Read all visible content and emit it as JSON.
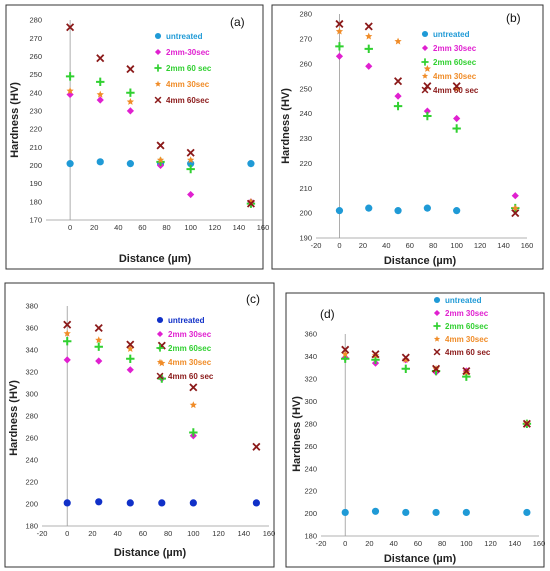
{
  "colors": {
    "untreated": "#1f9ad6",
    "untreated_c": "#1030c8",
    "pink": "#e020d0",
    "green": "#30d030",
    "orange": "#f08c28",
    "darkred": "#8b1a1a"
  },
  "chart_data": [
    {
      "type": "scatter",
      "panel_label": "(a)",
      "xlabel": "Distance (µm)",
      "ylabel": "Hardness (HV)",
      "xlim": [
        -20,
        160
      ],
      "ylim": [
        170,
        280
      ],
      "xticks": [
        0,
        20,
        40,
        60,
        80,
        100,
        120,
        140,
        160
      ],
      "yticks": [
        170,
        180,
        190,
        200,
        210,
        220,
        230,
        240,
        250,
        260,
        270,
        280
      ],
      "legend_position": "top-right",
      "series": [
        {
          "name": "untreated",
          "marker": "circle",
          "color_key": "untreated",
          "x": [
            0,
            25,
            50,
            75,
            100,
            150
          ],
          "y": [
            201,
            202,
            201,
            201,
            201,
            201
          ]
        },
        {
          "name": "2mm-30sec",
          "marker": "diamond",
          "color_key": "pink",
          "x": [
            0,
            25,
            50,
            75,
            100,
            150
          ],
          "y": [
            239,
            236,
            230,
            200,
            184,
            180
          ]
        },
        {
          "name": "2mm 60 sec",
          "marker": "plus",
          "color_key": "green",
          "x": [
            0,
            25,
            50,
            75,
            100,
            150
          ],
          "y": [
            249,
            246,
            240,
            202,
            198,
            179
          ]
        },
        {
          "name": "4mm 30sec",
          "marker": "star",
          "color_key": "orange",
          "x": [
            0,
            25,
            50,
            75,
            100,
            150
          ],
          "y": [
            241,
            239,
            235,
            203,
            203,
            180
          ]
        },
        {
          "name": "4mm 60sec",
          "marker": "cross",
          "color_key": "darkred",
          "x": [
            0,
            25,
            50,
            75,
            100,
            150
          ],
          "y": [
            276,
            259,
            253,
            211,
            207,
            179
          ]
        }
      ]
    },
    {
      "type": "scatter",
      "panel_label": "(b)",
      "xlabel": "Distance (µm)",
      "ylabel": "Hardness (HV)",
      "xlim": [
        -20,
        160
      ],
      "ylim": [
        190,
        280
      ],
      "xticks": [
        -20,
        0,
        20,
        40,
        60,
        80,
        100,
        120,
        140,
        160
      ],
      "yticks": [
        190,
        200,
        210,
        220,
        230,
        240,
        250,
        260,
        270,
        280
      ],
      "legend_position": "top-right",
      "series": [
        {
          "name": "untreated",
          "marker": "circle",
          "color_key": "untreated",
          "x": [
            0,
            25,
            50,
            75,
            100
          ],
          "y": [
            201,
            202,
            201,
            202,
            201
          ]
        },
        {
          "name": "2mm 30sec",
          "marker": "diamond",
          "color_key": "pink",
          "x": [
            0,
            25,
            50,
            75,
            100,
            150
          ],
          "y": [
            263,
            259,
            247,
            241,
            238,
            207
          ]
        },
        {
          "name": "2mm 60sec",
          "marker": "plus",
          "color_key": "green",
          "x": [
            0,
            25,
            50,
            75,
            100,
            150
          ],
          "y": [
            267,
            266,
            243,
            239,
            234,
            202
          ]
        },
        {
          "name": "4mm 30sec",
          "marker": "star",
          "color_key": "orange",
          "x": [
            0,
            25,
            50,
            75,
            100,
            150
          ],
          "y": [
            273,
            271,
            269,
            258,
            250,
            202
          ]
        },
        {
          "name": "4mm 60 sec",
          "marker": "cross",
          "color_key": "darkred",
          "x": [
            0,
            25,
            50,
            75,
            100,
            150
          ],
          "y": [
            276,
            275,
            253,
            251,
            251,
            200
          ]
        }
      ]
    },
    {
      "type": "scatter",
      "panel_label": "(c)",
      "xlabel": "Distance (µm)",
      "ylabel": "Hardness (HV)",
      "xlim": [
        -20,
        160
      ],
      "ylim": [
        180,
        380
      ],
      "xticks": [
        -20,
        0,
        20,
        40,
        60,
        80,
        100,
        120,
        140,
        160
      ],
      "yticks": [
        180,
        200,
        220,
        240,
        260,
        280,
        300,
        320,
        340,
        360,
        380
      ],
      "legend_position": "top-right",
      "series": [
        {
          "name": "untreated",
          "marker": "circle",
          "color_key": "untreated_c",
          "x": [
            0,
            25,
            50,
            75,
            100,
            150
          ],
          "y": [
            201,
            202,
            201,
            201,
            201,
            201
          ]
        },
        {
          "name": "2mm 30sec",
          "marker": "diamond",
          "color_key": "pink",
          "x": [
            0,
            25,
            50,
            75,
            100
          ],
          "y": [
            331,
            330,
            322,
            314,
            262
          ]
        },
        {
          "name": "2mm 60sec",
          "marker": "plus",
          "color_key": "green",
          "x": [
            0,
            25,
            50,
            75,
            100
          ],
          "y": [
            348,
            343,
            332,
            314,
            265
          ]
        },
        {
          "name": "4mm 30sec",
          "marker": "star",
          "color_key": "orange",
          "x": [
            0,
            25,
            50,
            75,
            100
          ],
          "y": [
            355,
            349,
            341,
            328,
            290
          ]
        },
        {
          "name": "4mm 60 sec",
          "marker": "cross",
          "color_key": "darkred",
          "x": [
            0,
            25,
            50,
            75,
            100,
            150
          ],
          "y": [
            363,
            360,
            345,
            344,
            306,
            252
          ]
        }
      ]
    },
    {
      "type": "scatter",
      "panel_label": "(d)",
      "xlabel": "Distance (µm)",
      "ylabel": "Hardness (HV)",
      "xlim": [
        -20,
        160
      ],
      "ylim": [
        180,
        360
      ],
      "xticks": [
        -20,
        0,
        20,
        40,
        60,
        80,
        100,
        120,
        140,
        160
      ],
      "yticks": [
        180,
        200,
        220,
        240,
        260,
        280,
        300,
        320,
        340,
        360
      ],
      "legend_position": "top-right",
      "series": [
        {
          "name": "untreated",
          "marker": "circle",
          "color_key": "untreated",
          "x": [
            0,
            25,
            50,
            75,
            100,
            150
          ],
          "y": [
            201,
            202,
            201,
            201,
            201,
            201
          ]
        },
        {
          "name": "2mm 30sec",
          "marker": "diamond",
          "color_key": "pink",
          "x": [
            0,
            25,
            50,
            75,
            100,
            150
          ],
          "y": [
            339,
            334,
            337,
            326,
            327,
            280
          ]
        },
        {
          "name": "2mm 60sec",
          "marker": "plus",
          "color_key": "green",
          "x": [
            0,
            25,
            50,
            75,
            100,
            150
          ],
          "y": [
            338,
            337,
            329,
            327,
            322,
            280
          ]
        },
        {
          "name": "4mm 30sec",
          "marker": "star",
          "color_key": "orange",
          "x": [
            0,
            25,
            50,
            75,
            100,
            150
          ],
          "y": [
            342,
            341,
            337,
            329,
            326,
            280
          ]
        },
        {
          "name": "4mm 60 sec",
          "marker": "cross",
          "color_key": "darkred",
          "x": [
            0,
            25,
            50,
            75,
            100,
            150
          ],
          "y": [
            346,
            342,
            339,
            329,
            327,
            280
          ]
        }
      ]
    }
  ]
}
